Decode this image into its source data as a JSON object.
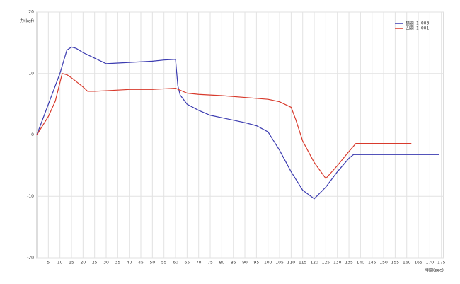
{
  "chart_data": {
    "type": "line",
    "y_label": "力(kgf)",
    "x_label": "時間(sec)",
    "xlim": [
      0,
      176
    ],
    "ylim": [
      -20,
      20
    ],
    "xticks": [
      5,
      10,
      15,
      20,
      25,
      30,
      35,
      40,
      45,
      50,
      55,
      60,
      65,
      70,
      75,
      80,
      85,
      90,
      95,
      100,
      105,
      110,
      115,
      120,
      125,
      130,
      135,
      140,
      145,
      150,
      155,
      160,
      165,
      170,
      175
    ],
    "yticks": [
      -20,
      -10,
      0,
      10,
      20
    ],
    "grid": true,
    "legend": "top-right",
    "series": [
      {
        "name": "横索_1_003",
        "color": "#3b3bb0",
        "x": [
          0,
          5,
          10,
          13,
          15,
          17,
          20,
          25,
          30,
          35,
          40,
          45,
          50,
          55,
          60,
          61,
          62,
          65,
          70,
          75,
          80,
          85,
          90,
          95,
          100,
          105,
          110,
          115,
          120,
          125,
          130,
          135,
          137,
          140,
          150,
          160,
          170,
          174
        ],
        "values": [
          0,
          5,
          10,
          13.8,
          14.3,
          14.1,
          13.4,
          12.5,
          11.6,
          11.7,
          11.8,
          11.9,
          12,
          12.2,
          12.3,
          8,
          6.5,
          5,
          4,
          3.2,
          2.8,
          2.4,
          2,
          1.5,
          0.5,
          -2.5,
          -6,
          -9,
          -10.4,
          -8.5,
          -6,
          -3.8,
          -3.2,
          -3.2,
          -3.2,
          -3.2,
          -3.2,
          -3.2
        ]
      },
      {
        "name": "四索_1_001",
        "color": "#d83a2c",
        "x": [
          0,
          5,
          8,
          11,
          13,
          15,
          20,
          22,
          25,
          30,
          40,
          50,
          60,
          65,
          70,
          80,
          90,
          100,
          105,
          110,
          112,
          115,
          120,
          125,
          130,
          135,
          138,
          140,
          150,
          160,
          162
        ],
        "values": [
          0,
          3,
          5.5,
          10,
          9.8,
          9.3,
          7.8,
          7.1,
          7.1,
          7.2,
          7.4,
          7.4,
          7.6,
          6.8,
          6.6,
          6.4,
          6.1,
          5.8,
          5.4,
          4.5,
          2.5,
          -1,
          -4.5,
          -7.1,
          -5,
          -2.7,
          -1.4,
          -1.4,
          -1.4,
          -1.4,
          -1.4
        ]
      }
    ]
  }
}
